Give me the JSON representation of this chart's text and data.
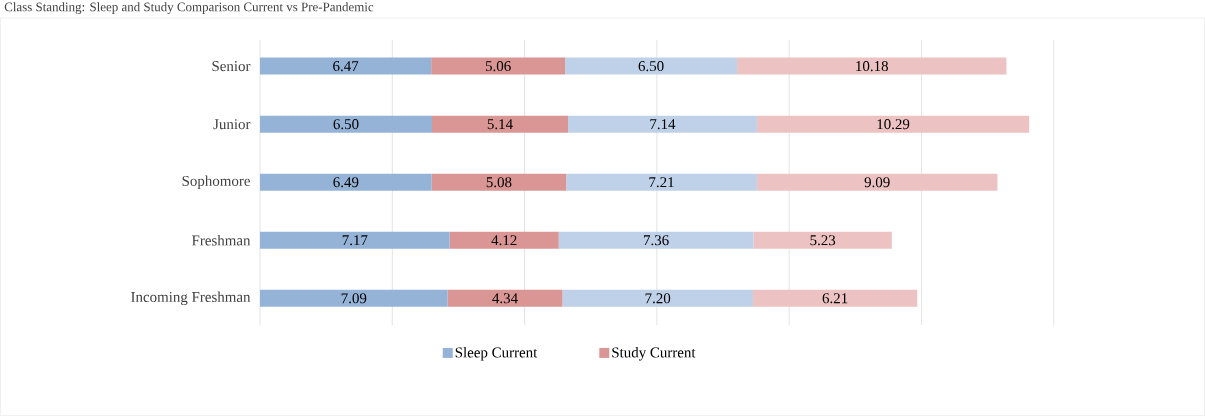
{
  "chart_data": {
    "type": "bar",
    "orientation": "horizontal",
    "stacked": true,
    "title": "Class Standing: Sleep and Study Comparison Current vs Pre-Pandemic",
    "categories": [
      "Senior",
      "Junior",
      "Sophomore",
      "Freshman",
      "Incoming Freshman"
    ],
    "series": [
      {
        "name": "Sleep Current",
        "color": "#95b3d7",
        "values": [
          6.47,
          6.5,
          6.49,
          7.17,
          7.09
        ],
        "value_labels": [
          "6.47",
          "6.50",
          "6.49",
          "7.17",
          "7.09"
        ]
      },
      {
        "name": "Study Current",
        "color": "#d99694",
        "values": [
          5.06,
          5.14,
          5.08,
          4.12,
          4.34
        ],
        "value_labels": [
          "5.06",
          "5.14",
          "5.08",
          "4.12",
          "4.34"
        ]
      },
      {
        "color": "#bfd1e8",
        "values": [
          6.5,
          7.14,
          7.21,
          7.36,
          7.2
        ],
        "value_labels": [
          "6.50",
          "7.14",
          "7.21",
          "7.36",
          "7.20"
        ]
      },
      {
        "color": "#ecc3c2",
        "values": [
          10.18,
          10.29,
          9.09,
          5.23,
          6.21
        ],
        "value_labels": [
          "10.18",
          "10.29",
          "9.09",
          "5.23",
          "6.21"
        ]
      }
    ],
    "tick_labels": "y",
    "grid": "x",
    "legend": "bottom"
  }
}
